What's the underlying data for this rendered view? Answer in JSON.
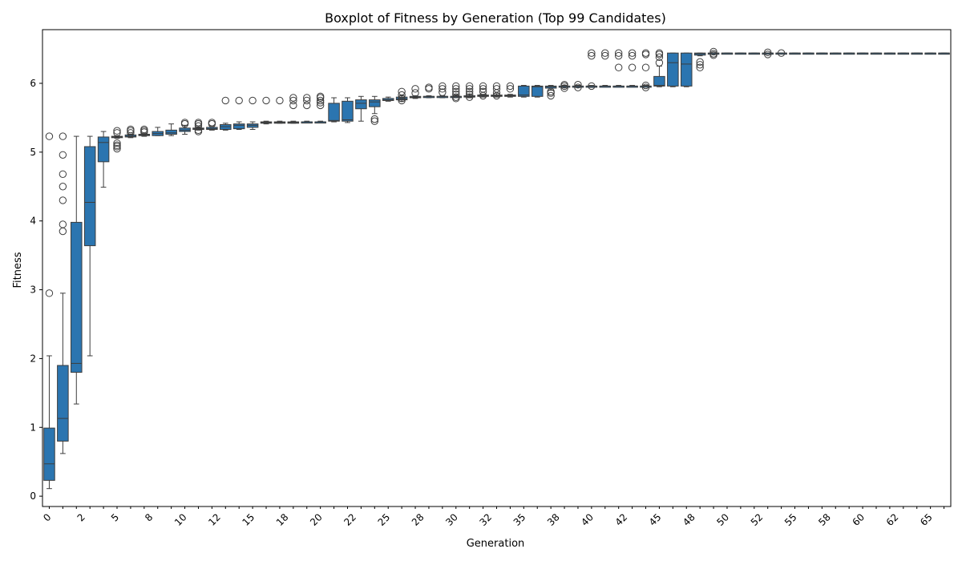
{
  "colors": {
    "box_fill": "#2b75b0",
    "line": "#3d3d3d",
    "frame": "#000000",
    "background": "#ffffff"
  },
  "chart_data": {
    "type": "box",
    "title": "Boxplot of Fitness by Generation (Top 99 Candidates)",
    "xlabel": "Generation",
    "ylabel": "Fitness",
    "ylim": [
      -0.15,
      6.78
    ],
    "xlim": [
      -0.5,
      66.5
    ],
    "grid": false,
    "yticks": [
      0,
      1,
      2,
      3,
      4,
      5,
      6
    ],
    "xtick_labels": [
      {
        "pos": 0,
        "label": "0"
      },
      {
        "pos": 2.5,
        "label": "2"
      },
      {
        "pos": 5,
        "label": "5"
      },
      {
        "pos": 7.5,
        "label": "8"
      },
      {
        "pos": 10,
        "label": "10"
      },
      {
        "pos": 12.5,
        "label": "12"
      },
      {
        "pos": 15,
        "label": "15"
      },
      {
        "pos": 17.5,
        "label": "18"
      },
      {
        "pos": 20,
        "label": "20"
      },
      {
        "pos": 22.5,
        "label": "22"
      },
      {
        "pos": 25,
        "label": "25"
      },
      {
        "pos": 27.5,
        "label": "28"
      },
      {
        "pos": 30,
        "label": "30"
      },
      {
        "pos": 32.5,
        "label": "32"
      },
      {
        "pos": 35,
        "label": "35"
      },
      {
        "pos": 37.5,
        "label": "38"
      },
      {
        "pos": 40,
        "label": "40"
      },
      {
        "pos": 42.5,
        "label": "42"
      },
      {
        "pos": 45,
        "label": "45"
      },
      {
        "pos": 47.5,
        "label": "48"
      },
      {
        "pos": 50,
        "label": "50"
      },
      {
        "pos": 52.5,
        "label": "52"
      },
      {
        "pos": 55,
        "label": "55"
      },
      {
        "pos": 57.5,
        "label": "58"
      },
      {
        "pos": 60,
        "label": "60"
      },
      {
        "pos": 62.5,
        "label": "62"
      },
      {
        "pos": 65,
        "label": "65"
      }
    ],
    "boxes": [
      {
        "gen": 0,
        "q1": 0.23,
        "median": 0.47,
        "q3": 0.99,
        "whisker_low": 0.11,
        "whisker_high": 2.04,
        "outliers": [
          2.95,
          5.23
        ]
      },
      {
        "gen": 1,
        "q1": 0.8,
        "median": 1.13,
        "q3": 1.9,
        "whisker_low": 0.62,
        "whisker_high": 2.95,
        "outliers": [
          3.85,
          3.95,
          4.3,
          4.5,
          4.68,
          4.96,
          5.23
        ]
      },
      {
        "gen": 2,
        "q1": 1.8,
        "median": 1.93,
        "q3": 3.98,
        "whisker_low": 1.34,
        "whisker_high": 5.23,
        "outliers": []
      },
      {
        "gen": 3,
        "q1": 3.64,
        "median": 4.27,
        "q3": 5.08,
        "whisker_low": 2.04,
        "whisker_high": 5.23,
        "outliers": []
      },
      {
        "gen": 4,
        "q1": 4.86,
        "median": 5.14,
        "q3": 5.22,
        "whisker_low": 4.49,
        "whisker_high": 5.3,
        "outliers": []
      },
      {
        "gen": 5,
        "q1": 5.21,
        "median": 5.22,
        "q3": 5.23,
        "whisker_low": 5.2,
        "whisker_high": 5.24,
        "outliers": [
          5.05,
          5.08,
          5.1,
          5.13,
          5.28,
          5.31
        ]
      },
      {
        "gen": 6,
        "q1": 5.22,
        "median": 5.23,
        "q3": 5.25,
        "whisker_low": 5.21,
        "whisker_high": 5.26,
        "outliers": [
          5.28,
          5.31,
          5.33
        ]
      },
      {
        "gen": 7,
        "q1": 5.24,
        "median": 5.25,
        "q3": 5.26,
        "whisker_low": 5.23,
        "whisker_high": 5.27,
        "outliers": [
          5.29,
          5.31,
          5.33
        ]
      },
      {
        "gen": 8,
        "q1": 5.24,
        "median": 5.27,
        "q3": 5.3,
        "whisker_low": 5.24,
        "whisker_high": 5.36,
        "outliers": []
      },
      {
        "gen": 9,
        "q1": 5.26,
        "median": 5.28,
        "q3": 5.32,
        "whisker_low": 5.24,
        "whisker_high": 5.41,
        "outliers": []
      },
      {
        "gen": 10,
        "q1": 5.3,
        "median": 5.32,
        "q3": 5.35,
        "whisker_low": 5.26,
        "whisker_high": 5.39,
        "outliers": [
          5.41,
          5.43
        ]
      },
      {
        "gen": 11,
        "q1": 5.33,
        "median": 5.34,
        "q3": 5.35,
        "whisker_low": 5.32,
        "whisker_high": 5.36,
        "outliers": [
          5.3,
          5.32,
          5.38,
          5.41,
          5.43
        ]
      },
      {
        "gen": 12,
        "q1": 5.33,
        "median": 5.34,
        "q3": 5.36,
        "whisker_low": 5.32,
        "whisker_high": 5.38,
        "outliers": [
          5.41,
          5.43
        ]
      },
      {
        "gen": 13,
        "q1": 5.33,
        "median": 5.37,
        "q3": 5.4,
        "whisker_low": 5.32,
        "whisker_high": 5.42,
        "outliers": [
          5.75
        ]
      },
      {
        "gen": 14,
        "q1": 5.34,
        "median": 5.39,
        "q3": 5.41,
        "whisker_low": 5.33,
        "whisker_high": 5.44,
        "outliers": [
          5.75
        ]
      },
      {
        "gen": 15,
        "q1": 5.36,
        "median": 5.39,
        "q3": 5.41,
        "whisker_low": 5.33,
        "whisker_high": 5.44,
        "outliers": [
          5.75
        ]
      },
      {
        "gen": 16,
        "q1": 5.42,
        "median": 5.43,
        "q3": 5.44,
        "whisker_low": 5.41,
        "whisker_high": 5.45,
        "outliers": [
          5.75
        ]
      },
      {
        "gen": 17,
        "q1": 5.42,
        "median": 5.43,
        "q3": 5.44,
        "whisker_low": 5.42,
        "whisker_high": 5.45,
        "outliers": [
          5.75
        ]
      },
      {
        "gen": 18,
        "q1": 5.42,
        "median": 5.43,
        "q3": 5.44,
        "whisker_low": 5.42,
        "whisker_high": 5.45,
        "outliers": [
          5.68,
          5.75,
          5.79
        ]
      },
      {
        "gen": 19,
        "q1": 5.43,
        "median": 5.44,
        "q3": 5.44,
        "whisker_low": 5.43,
        "whisker_high": 5.45,
        "outliers": [
          5.68,
          5.75,
          5.79
        ]
      },
      {
        "gen": 20,
        "q1": 5.43,
        "median": 5.44,
        "q3": 5.44,
        "whisker_low": 5.43,
        "whisker_high": 5.45,
        "outliers": [
          5.68,
          5.72,
          5.75,
          5.79,
          5.81
        ]
      },
      {
        "gen": 21,
        "q1": 5.45,
        "median": 5.46,
        "q3": 5.71,
        "whisker_low": 5.44,
        "whisker_high": 5.79,
        "outliers": []
      },
      {
        "gen": 22,
        "q1": 5.45,
        "median": 5.47,
        "q3": 5.74,
        "whisker_low": 5.43,
        "whisker_high": 5.79,
        "outliers": []
      },
      {
        "gen": 23,
        "q1": 5.63,
        "median": 5.71,
        "q3": 5.76,
        "whisker_low": 5.45,
        "whisker_high": 5.81,
        "outliers": []
      },
      {
        "gen": 24,
        "q1": 5.66,
        "median": 5.73,
        "q3": 5.76,
        "whisker_low": 5.56,
        "whisker_high": 5.81,
        "outliers": [
          5.45,
          5.48
        ]
      },
      {
        "gen": 25,
        "q1": 5.75,
        "median": 5.76,
        "q3": 5.78,
        "whisker_low": 5.74,
        "whisker_high": 5.8,
        "outliers": []
      },
      {
        "gen": 26,
        "q1": 5.76,
        "median": 5.77,
        "q3": 5.8,
        "whisker_low": 5.74,
        "whisker_high": 5.82,
        "outliers": [
          5.75,
          5.78,
          5.83,
          5.88
        ]
      },
      {
        "gen": 27,
        "q1": 5.79,
        "median": 5.8,
        "q3": 5.81,
        "whisker_low": 5.78,
        "whisker_high": 5.82,
        "outliers": [
          5.86,
          5.92
        ]
      },
      {
        "gen": 28,
        "q1": 5.8,
        "median": 5.81,
        "q3": 5.81,
        "whisker_low": 5.79,
        "whisker_high": 5.82,
        "outliers": [
          5.92,
          5.94
        ]
      },
      {
        "gen": 29,
        "q1": 5.8,
        "median": 5.81,
        "q3": 5.81,
        "whisker_low": 5.79,
        "whisker_high": 5.82,
        "outliers": [
          5.87,
          5.92,
          5.96
        ]
      },
      {
        "gen": 30,
        "q1": 5.8,
        "median": 5.81,
        "q3": 5.81,
        "whisker_low": 5.79,
        "whisker_high": 5.82,
        "outliers": [
          5.78,
          5.8,
          5.84,
          5.88,
          5.92,
          5.96
        ]
      },
      {
        "gen": 31,
        "q1": 5.8,
        "median": 5.81,
        "q3": 5.82,
        "whisker_low": 5.79,
        "whisker_high": 5.84,
        "outliers": [
          5.8,
          5.84,
          5.88,
          5.92,
          5.96
        ]
      },
      {
        "gen": 32,
        "q1": 5.81,
        "median": 5.82,
        "q3": 5.83,
        "whisker_low": 5.8,
        "whisker_high": 5.84,
        "outliers": [
          5.82,
          5.88,
          5.92,
          5.96
        ]
      },
      {
        "gen": 33,
        "q1": 5.81,
        "median": 5.82,
        "q3": 5.83,
        "whisker_low": 5.8,
        "whisker_high": 5.85,
        "outliers": [
          5.82,
          5.86,
          5.92,
          5.96
        ]
      },
      {
        "gen": 34,
        "q1": 5.81,
        "median": 5.82,
        "q3": 5.83,
        "whisker_low": 5.8,
        "whisker_high": 5.84,
        "outliers": [
          5.92,
          5.96
        ]
      },
      {
        "gen": 35,
        "q1": 5.81,
        "median": 5.83,
        "q3": 5.96,
        "whisker_low": 5.8,
        "whisker_high": 5.97,
        "outliers": []
      },
      {
        "gen": 36,
        "q1": 5.81,
        "median": 5.95,
        "q3": 5.96,
        "whisker_low": 5.8,
        "whisker_high": 5.97,
        "outliers": []
      },
      {
        "gen": 37,
        "q1": 5.93,
        "median": 5.95,
        "q3": 5.96,
        "whisker_low": 5.9,
        "whisker_high": 5.97,
        "outliers": [
          5.82,
          5.86,
          5.88
        ]
      },
      {
        "gen": 38,
        "q1": 5.95,
        "median": 5.96,
        "q3": 5.96,
        "whisker_low": 5.94,
        "whisker_high": 5.97,
        "outliers": [
          5.93,
          5.96,
          5.98
        ]
      },
      {
        "gen": 39,
        "q1": 5.95,
        "median": 5.96,
        "q3": 5.96,
        "whisker_low": 5.94,
        "whisker_high": 5.97,
        "outliers": [
          5.94,
          5.98
        ]
      },
      {
        "gen": 40,
        "q1": 5.95,
        "median": 5.96,
        "q3": 5.96,
        "whisker_low": 5.94,
        "whisker_high": 5.97,
        "outliers": [
          5.96,
          6.4,
          6.44
        ]
      },
      {
        "gen": 41,
        "q1": 5.96,
        "median": 5.96,
        "q3": 5.96,
        "whisker_low": 5.95,
        "whisker_high": 5.97,
        "outliers": [
          6.4,
          6.44
        ]
      },
      {
        "gen": 42,
        "q1": 5.96,
        "median": 5.96,
        "q3": 5.96,
        "whisker_low": 5.95,
        "whisker_high": 5.97,
        "outliers": [
          6.23,
          6.4,
          6.44
        ]
      },
      {
        "gen": 43,
        "q1": 5.96,
        "median": 5.96,
        "q3": 5.96,
        "whisker_low": 5.95,
        "whisker_high": 5.97,
        "outliers": [
          6.23,
          6.4,
          6.44
        ]
      },
      {
        "gen": 44,
        "q1": 5.96,
        "median": 5.96,
        "q3": 5.96,
        "whisker_low": 5.95,
        "whisker_high": 5.97,
        "outliers": [
          5.94,
          5.97,
          6.23,
          6.42,
          6.44
        ]
      },
      {
        "gen": 45,
        "q1": 5.96,
        "median": 5.97,
        "q3": 6.1,
        "whisker_low": 5.95,
        "whisker_high": 6.25,
        "outliers": [
          6.3,
          6.38,
          6.42,
          6.44
        ]
      },
      {
        "gen": 46,
        "q1": 5.96,
        "median": 6.3,
        "q3": 6.44,
        "whisker_low": 5.95,
        "whisker_high": 6.44,
        "outliers": []
      },
      {
        "gen": 47,
        "q1": 5.96,
        "median": 6.28,
        "q3": 6.44,
        "whisker_low": 5.95,
        "whisker_high": 6.44,
        "outliers": []
      },
      {
        "gen": 48,
        "q1": 6.41,
        "median": 6.43,
        "q3": 6.44,
        "whisker_low": 6.4,
        "whisker_high": 6.44,
        "outliers": [
          6.23,
          6.27,
          6.31
        ]
      },
      {
        "gen": 49,
        "q1": 6.43,
        "median": 6.44,
        "q3": 6.44,
        "whisker_low": 6.42,
        "whisker_high": 6.44,
        "outliers": [
          6.41,
          6.43,
          6.46
        ]
      },
      {
        "gen": 50,
        "q1": 6.44,
        "median": 6.44,
        "q3": 6.44,
        "whisker_low": 6.44,
        "whisker_high": 6.44,
        "outliers": []
      },
      {
        "gen": 51,
        "q1": 6.44,
        "median": 6.44,
        "q3": 6.44,
        "whisker_low": 6.44,
        "whisker_high": 6.44,
        "outliers": []
      },
      {
        "gen": 52,
        "q1": 6.44,
        "median": 6.44,
        "q3": 6.44,
        "whisker_low": 6.44,
        "whisker_high": 6.44,
        "outliers": []
      },
      {
        "gen": 53,
        "q1": 6.44,
        "median": 6.44,
        "q3": 6.44,
        "whisker_low": 6.44,
        "whisker_high": 6.44,
        "outliers": [
          6.42,
          6.45
        ]
      },
      {
        "gen": 54,
        "q1": 6.44,
        "median": 6.44,
        "q3": 6.44,
        "whisker_low": 6.44,
        "whisker_high": 6.44,
        "outliers": [
          6.44
        ]
      },
      {
        "gen": 55,
        "q1": 6.44,
        "median": 6.44,
        "q3": 6.44,
        "whisker_low": 6.44,
        "whisker_high": 6.44,
        "outliers": []
      },
      {
        "gen": 56,
        "q1": 6.44,
        "median": 6.44,
        "q3": 6.44,
        "whisker_low": 6.44,
        "whisker_high": 6.44,
        "outliers": []
      },
      {
        "gen": 57,
        "q1": 6.44,
        "median": 6.44,
        "q3": 6.44,
        "whisker_low": 6.44,
        "whisker_high": 6.44,
        "outliers": []
      },
      {
        "gen": 58,
        "q1": 6.44,
        "median": 6.44,
        "q3": 6.44,
        "whisker_low": 6.44,
        "whisker_high": 6.44,
        "outliers": []
      },
      {
        "gen": 59,
        "q1": 6.44,
        "median": 6.44,
        "q3": 6.44,
        "whisker_low": 6.44,
        "whisker_high": 6.44,
        "outliers": []
      },
      {
        "gen": 60,
        "q1": 6.44,
        "median": 6.44,
        "q3": 6.44,
        "whisker_low": 6.44,
        "whisker_high": 6.44,
        "outliers": []
      },
      {
        "gen": 61,
        "q1": 6.44,
        "median": 6.44,
        "q3": 6.44,
        "whisker_low": 6.44,
        "whisker_high": 6.44,
        "outliers": []
      },
      {
        "gen": 62,
        "q1": 6.44,
        "median": 6.44,
        "q3": 6.44,
        "whisker_low": 6.44,
        "whisker_high": 6.44,
        "outliers": []
      },
      {
        "gen": 63,
        "q1": 6.44,
        "median": 6.44,
        "q3": 6.44,
        "whisker_low": 6.44,
        "whisker_high": 6.44,
        "outliers": []
      },
      {
        "gen": 64,
        "q1": 6.44,
        "median": 6.44,
        "q3": 6.44,
        "whisker_low": 6.44,
        "whisker_high": 6.44,
        "outliers": []
      },
      {
        "gen": 65,
        "q1": 6.44,
        "median": 6.44,
        "q3": 6.44,
        "whisker_low": 6.44,
        "whisker_high": 6.44,
        "outliers": []
      },
      {
        "gen": 66,
        "q1": 6.44,
        "median": 6.44,
        "q3": 6.44,
        "whisker_low": 6.44,
        "whisker_high": 6.44,
        "outliers": []
      }
    ]
  }
}
